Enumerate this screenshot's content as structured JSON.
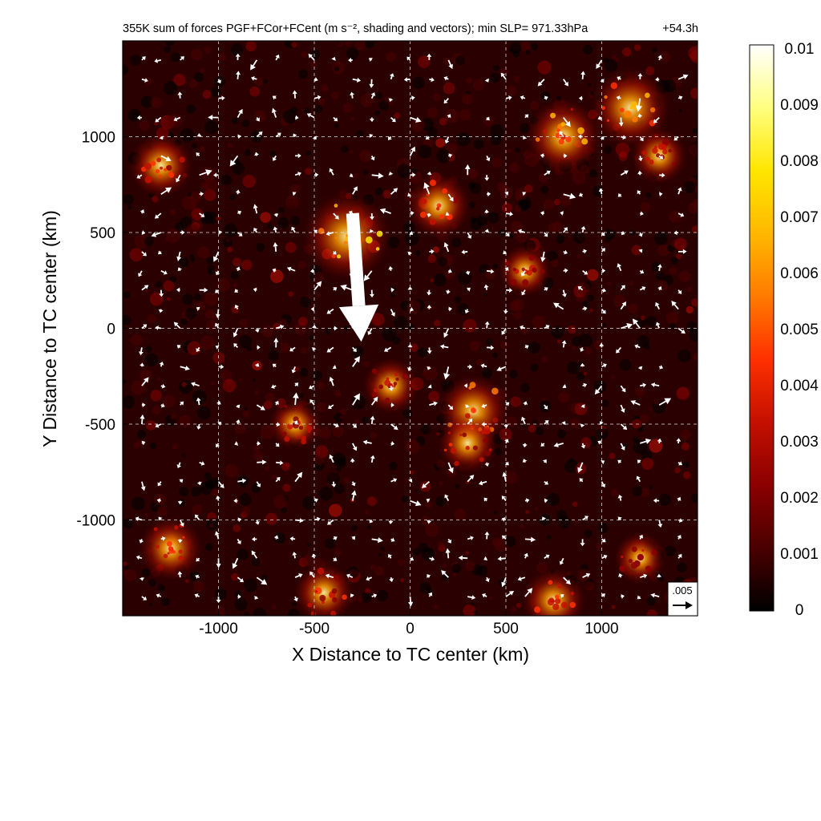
{
  "chart_data": {
    "type": "heatmap",
    "title": "355K sum of forces PGF+FCor+FCent (m s⁻², shading and vectors); min SLP= 971.33hPa",
    "time_label": "+54.3h",
    "xlabel": "X Distance to TC center (km)",
    "ylabel": "Y Distance to TC center (km)",
    "xlim": [
      -1500,
      1500
    ],
    "ylim": [
      -1500,
      1500
    ],
    "xticks": [
      -1000,
      -500,
      0,
      500,
      1000
    ],
    "yticks": [
      1000,
      500,
      0,
      -500,
      -1000
    ],
    "grid": true,
    "colorbar": {
      "min": 0,
      "max": 0.01,
      "tick_labels": [
        "0.01",
        "0.009",
        "0.008",
        "0.007",
        "0.006",
        "0.005",
        "0.004",
        "0.003",
        "0.002",
        "0.001",
        "0"
      ],
      "colors": [
        "#000000",
        "#4a0000",
        "#8b0000",
        "#c41000",
        "#ff3000",
        "#ff7a00",
        "#ffb800",
        "#ffe600",
        "#ffff80",
        "#ffffff"
      ]
    },
    "reference_vector": {
      "label": ".005",
      "magnitude": 0.005
    },
    "highlight_vector": {
      "x": -300,
      "y": 600,
      "u": 0.003,
      "v": -0.0445
    },
    "hotspots": [
      {
        "x": -330,
        "y": 480,
        "v": 0.0075
      },
      {
        "x": 150,
        "y": 640,
        "v": 0.0045
      },
      {
        "x": 800,
        "y": 1000,
        "v": 0.006
      },
      {
        "x": 1150,
        "y": 1150,
        "v": 0.0065
      },
      {
        "x": -1300,
        "y": 850,
        "v": 0.0045
      },
      {
        "x": 330,
        "y": -430,
        "v": 0.0055
      },
      {
        "x": 300,
        "y": -600,
        "v": 0.004
      },
      {
        "x": -1250,
        "y": -1150,
        "v": 0.0045
      },
      {
        "x": 750,
        "y": -1420,
        "v": 0.0045
      },
      {
        "x": -100,
        "y": -300,
        "v": 0.0035
      },
      {
        "x": -450,
        "y": -1380,
        "v": 0.004
      },
      {
        "x": 1300,
        "y": 900,
        "v": 0.0035
      },
      {
        "x": 600,
        "y": 300,
        "v": 0.003
      },
      {
        "x": -600,
        "y": -500,
        "v": 0.003
      },
      {
        "x": 1200,
        "y": -1200,
        "v": 0.003
      }
    ]
  }
}
